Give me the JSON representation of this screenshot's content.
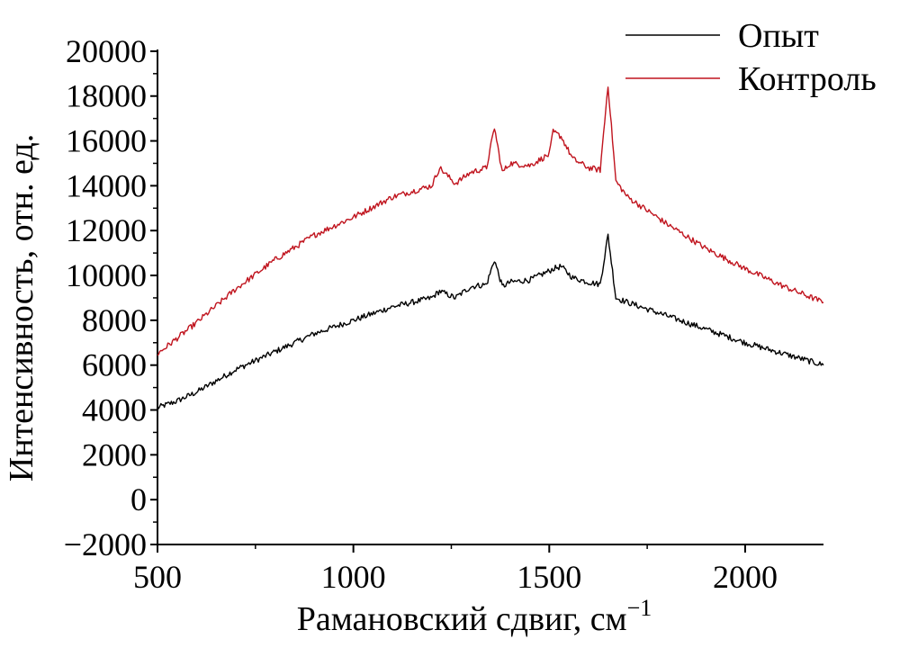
{
  "chart_data": {
    "type": "line",
    "title": "",
    "xlabel": "Рамановский сдвиг, см",
    "xlabel_sup": "−1",
    "ylabel": "Интенсивность, отн. ед.",
    "xlim": [
      500,
      2200
    ],
    "ylim": [
      -2000,
      21000
    ],
    "x_ticks": [
      500,
      1000,
      1500,
      2000
    ],
    "x_tick_labels": [
      "500",
      "1000",
      "1500",
      "2000"
    ],
    "y_ticks": [
      -2000,
      0,
      2000,
      4000,
      6000,
      8000,
      10000,
      12000,
      14000,
      16000,
      18000,
      20000
    ],
    "y_tick_labels": [
      "−2000",
      "0",
      "2000",
      "4000",
      "6000",
      "8000",
      "10000",
      "12000",
      "14000",
      "16000",
      "18000",
      "20000"
    ],
    "grid": false,
    "legend_position": "top-right",
    "series": [
      {
        "name": "Опыт",
        "color": "#000000",
        "x": [
          500,
          550,
          600,
          640,
          700,
          800,
          900,
          1000,
          1100,
          1200,
          1220,
          1260,
          1300,
          1340,
          1360,
          1380,
          1400,
          1450,
          1500,
          1510,
          1530,
          1560,
          1600,
          1630,
          1650,
          1670,
          1700,
          1800,
          1900,
          2000,
          2100,
          2200
        ],
        "y": [
          4100,
          4400,
          4800,
          5200,
          5800,
          6600,
          7400,
          8000,
          8600,
          9000,
          9300,
          9000,
          9500,
          9600,
          10700,
          9500,
          9700,
          9800,
          10200,
          10300,
          10400,
          9900,
          9700,
          9600,
          11800,
          9000,
          8800,
          8200,
          7600,
          7000,
          6500,
          6000
        ]
      },
      {
        "name": "Контроль",
        "color": "#c0141e",
        "x": [
          500,
          550,
          600,
          640,
          700,
          800,
          900,
          1000,
          1100,
          1200,
          1220,
          1260,
          1300,
          1340,
          1360,
          1380,
          1400,
          1450,
          1500,
          1510,
          1530,
          1560,
          1600,
          1630,
          1650,
          1670,
          1700,
          1800,
          1900,
          2000,
          2100,
          2200
        ],
        "y": [
          6500,
          7200,
          7900,
          8500,
          9400,
          10700,
          11800,
          12600,
          13500,
          14000,
          14800,
          14100,
          14600,
          14800,
          16600,
          14600,
          15000,
          14900,
          15400,
          16400,
          16200,
          15200,
          14800,
          14700,
          18500,
          14200,
          13500,
          12300,
          11200,
          10300,
          9500,
          8800
        ]
      }
    ]
  }
}
